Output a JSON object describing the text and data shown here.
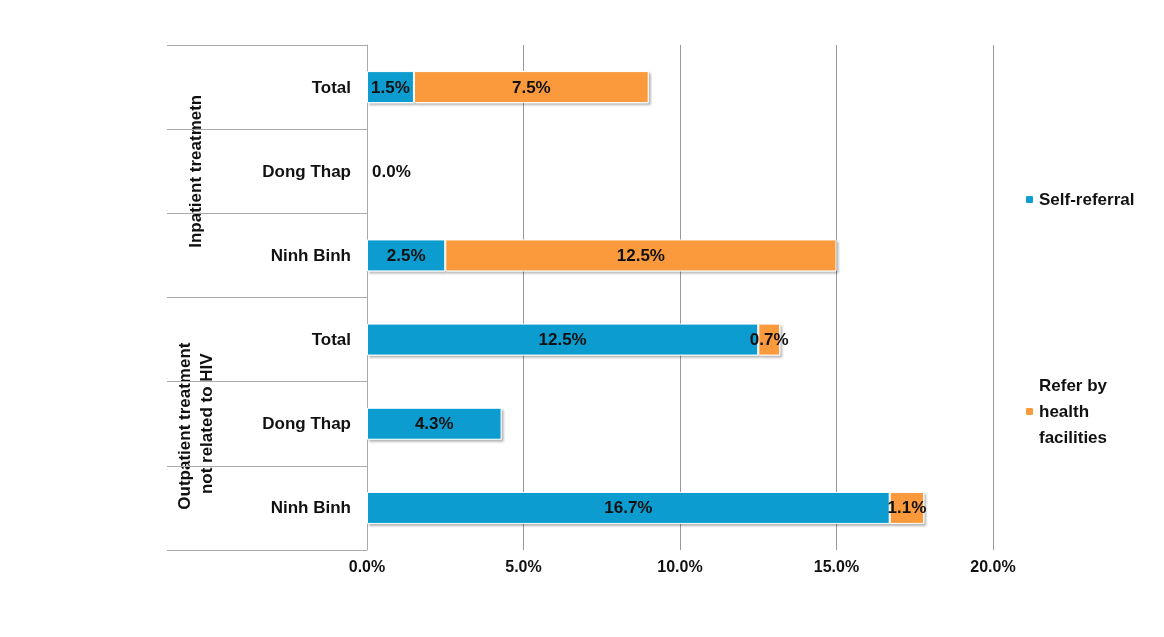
{
  "chart_data": {
    "type": "bar",
    "orientation": "horizontal",
    "stacked": true,
    "categories": [
      "Total",
      "Dong Thap",
      "Ninh Binh",
      "Total",
      "Dong Thap",
      "Ninh Binh"
    ],
    "series": [
      {
        "name": "Self-referral",
        "color": "#0f9ccf",
        "values": [
          1.5,
          0,
          2.5,
          12.5,
          4.3,
          16.7
        ],
        "value_labels": [
          "1.5%",
          "0.0%",
          "2.5%",
          "12.5%",
          "4.3%",
          "16.7%"
        ]
      },
      {
        "name": "Refer by health facilities",
        "color": "#fb9a3c",
        "values": [
          7.5,
          null,
          12.5,
          0.7,
          null,
          1.1
        ],
        "value_labels": [
          "7.5%",
          null,
          "12.5%",
          "0.7%",
          null,
          "1.1%"
        ]
      }
    ],
    "xlim": [
      0,
      20
    ],
    "xticks": [
      {
        "value": 0,
        "label": "0.0%"
      },
      {
        "value": 5,
        "label": "5.0%"
      },
      {
        "value": 10,
        "label": "10.0%"
      },
      {
        "value": 15,
        "label": "15.0%"
      },
      {
        "value": 20,
        "label": "20.0%"
      }
    ],
    "annotations": [
      "Inpatient treatmetn",
      "Outpatient treatment not related to HIV"
    ],
    "grid": "x",
    "legend": "right"
  }
}
